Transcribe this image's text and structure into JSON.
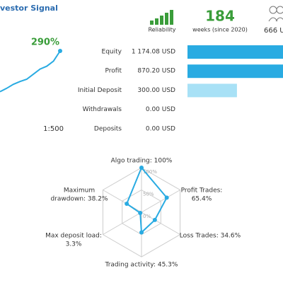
{
  "header": {
    "title": "vestor Signal",
    "reliability_label": "Reliability",
    "weeks": "184",
    "weeks_label": "weeks (since 2020)",
    "subscribers": "666 U"
  },
  "growth": {
    "label": "290%",
    "values": [
      218,
      224,
      231,
      236,
      240,
      249,
      258,
      263,
      272,
      290
    ],
    "leverage": "1:500"
  },
  "stats": [
    {
      "label": "Equity",
      "amount": 1174.08,
      "value_label": "1 174.08 USD",
      "color": "#29abe2"
    },
    {
      "label": "Profit",
      "amount": 870.2,
      "value_label": "870.20 USD",
      "color": "#29abe2"
    },
    {
      "label": "Initial Deposit",
      "amount": 300.0,
      "value_label": "300.00 USD",
      "color": "#a8e1f6"
    },
    {
      "label": "Withdrawals",
      "amount": 0.0,
      "value_label": "0.00 USD",
      "color": "#29abe2"
    },
    {
      "label": "Deposits",
      "amount": 0.0,
      "value_label": "0.00 USD",
      "color": "#29abe2"
    }
  ],
  "radar": {
    "ticks": [
      {
        "value": 100,
        "label": "100%"
      },
      {
        "value": 50,
        "label": "50%"
      },
      {
        "value": 0,
        "label": "0%"
      }
    ],
    "axes": [
      {
        "label": [
          "Algo trading: 100%"
        ],
        "value": 100
      },
      {
        "label": [
          "Profit Trades:",
          "65.4%"
        ],
        "value": 65.4
      },
      {
        "label": [
          "Loss Trades: 34.6%"
        ],
        "value": 34.6
      },
      {
        "label": [
          "Trading activity: 45.3%"
        ],
        "value": 45.3
      },
      {
        "label": [
          "Max deposit load:",
          "3.3%"
        ],
        "value": 3.3
      },
      {
        "label": [
          "Maximum",
          "drawdown: 38.2%"
        ],
        "value": 38.2
      }
    ]
  }
}
